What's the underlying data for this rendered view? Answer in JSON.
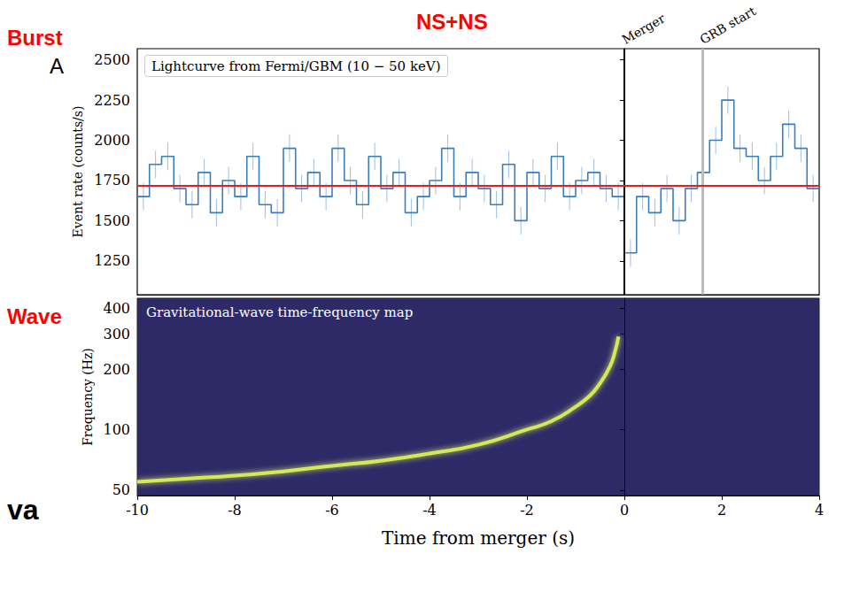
{
  "chart_data": [
    {
      "type": "histogram",
      "title": "Lightcurve from Fermi/GBM (10 − 50 keV)",
      "y_label": "Event rate (counts/s)",
      "bins": [
        -10,
        -9.75,
        -9.5,
        -9.25,
        -9,
        -8.75,
        -8.5,
        -8.25,
        -8,
        -7.75,
        -7.5,
        -7.25,
        -7,
        -6.75,
        -6.5,
        -6.25,
        -6,
        -5.75,
        -5.5,
        -5.25,
        -5,
        -4.75,
        -4.5,
        -4.25,
        -4,
        -3.75,
        -3.5,
        -3.25,
        -3,
        -2.75,
        -2.5,
        -2.25,
        -2,
        -1.75,
        -1.5,
        -1.25,
        -1,
        -0.75,
        -0.5,
        -0.25,
        0,
        0.25,
        0.5,
        0.75,
        1,
        1.25,
        1.5,
        1.75,
        2,
        2.25,
        2.5,
        2.75,
        3,
        3.25,
        3.5,
        3.75,
        4
      ],
      "values": [
        1650,
        1850,
        1900,
        1700,
        1600,
        1800,
        1550,
        1750,
        1650,
        1900,
        1600,
        1550,
        1950,
        1700,
        1800,
        1650,
        1950,
        1750,
        1600,
        1900,
        1700,
        1800,
        1550,
        1650,
        1750,
        1950,
        1650,
        1800,
        1700,
        1600,
        1850,
        1500,
        1800,
        1700,
        1900,
        1650,
        1750,
        1800,
        1700,
        1650,
        1300,
        1650,
        1550,
        1700,
        1500,
        1700,
        1800,
        2000,
        2250,
        1950,
        1900,
        1750,
        1900,
        2100,
        1950,
        1700
      ],
      "errors": [
        85,
        85,
        85,
        85,
        85,
        85,
        85,
        85,
        85,
        85,
        85,
        85,
        85,
        85,
        85,
        85,
        85,
        85,
        85,
        85,
        85,
        85,
        85,
        85,
        85,
        85,
        85,
        85,
        85,
        85,
        85,
        85,
        85,
        85,
        85,
        85,
        85,
        85,
        85,
        85,
        85,
        85,
        85,
        85,
        85,
        85,
        85,
        85,
        85,
        85,
        85,
        85,
        85,
        85,
        85,
        85
      ],
      "color": "#3a7dbf",
      "line_style": "step",
      "background_level": 1720,
      "background_color": "#e02020",
      "vlines": [
        {
          "x": 0,
          "label": "Merger",
          "color": "#000000"
        },
        {
          "x": 1.6,
          "label": "GRB start",
          "color": "#bbbbbb"
        }
      ],
      "xlim": [
        -10,
        4
      ],
      "ylim": [
        1040,
        2570
      ],
      "yticks": [
        1250,
        1500,
        1750,
        2000,
        2250,
        2500
      ],
      "tick_labels": "y",
      "grid": false
    },
    {
      "type": "line",
      "title": "Gravitational-wave time-frequency map",
      "x_label": "Time from merger (s)",
      "y_label": "Frequency (Hz)",
      "x": [
        -10,
        -9,
        -8,
        -7,
        -6,
        -5,
        -4,
        -3,
        -2,
        -1.5,
        -1,
        -0.7,
        -0.5,
        -0.3,
        -0.2,
        -0.12
      ],
      "values": [
        55,
        57,
        59,
        62,
        66,
        70,
        76,
        84,
        100,
        110,
        130,
        148,
        170,
        205,
        240,
        290
      ],
      "color": "#d4e85a",
      "log": "y",
      "xlim": [
        -10,
        4
      ],
      "xticks": [
        -10,
        -8,
        -6,
        -4,
        -2,
        0,
        2,
        4
      ],
      "ylim": [
        47,
        450
      ],
      "yticks": [
        50,
        100,
        200,
        300,
        400
      ],
      "grid": false
    }
  ],
  "annotations": [
    {
      "text": "Burst",
      "color": "#ff0000"
    },
    {
      "text": "A",
      "color": "#000000"
    },
    {
      "text": "NS+NS",
      "color": "#ff0000"
    },
    {
      "text": "Wave",
      "color": "#ff0000"
    },
    {
      "text": "va",
      "color": "#000000"
    }
  ]
}
